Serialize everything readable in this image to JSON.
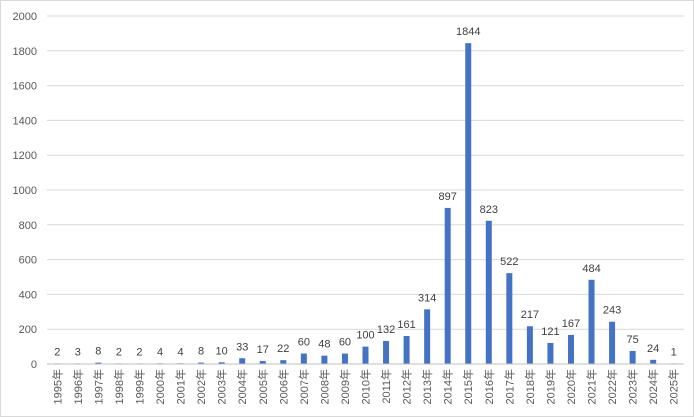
{
  "chart_data": {
    "type": "bar",
    "title": "",
    "xlabel": "",
    "ylabel": "",
    "ylim": [
      0,
      2000
    ],
    "yticks": [
      0,
      200,
      400,
      600,
      800,
      1000,
      1200,
      1400,
      1600,
      1800,
      2000
    ],
    "grid": "horizontal",
    "legend": "none",
    "bar_color": "#4472c4",
    "categories": [
      "1995年",
      "1996年",
      "1997年",
      "1998年",
      "1999年",
      "2000年",
      "2001年",
      "2002年",
      "2003年",
      "2004年",
      "2005年",
      "2006年",
      "2007年",
      "2008年",
      "2009年",
      "2010年",
      "2011年",
      "2012年",
      "2013年",
      "2014年",
      "2015年",
      "2016年",
      "2017年",
      "2018年",
      "2019年",
      "2020年",
      "2021年",
      "2022年",
      "2023年",
      "2024年",
      "2025年"
    ],
    "values": [
      2,
      3,
      8,
      2,
      2,
      4,
      4,
      8,
      10,
      33,
      17,
      22,
      60,
      48,
      60,
      100,
      132,
      161,
      314,
      897,
      1844,
      823,
      522,
      217,
      121,
      167,
      484,
      243,
      75,
      24,
      1
    ]
  }
}
